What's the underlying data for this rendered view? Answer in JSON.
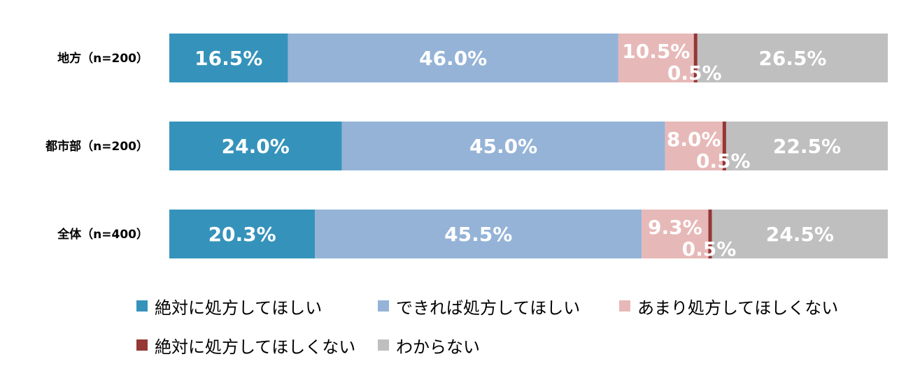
{
  "chart_data": {
    "type": "bar",
    "orientation": "horizontal",
    "stacked": true,
    "percent_stacked": true,
    "categories": [
      "地方（n=200）",
      "都市部（n=200）",
      "全体（n=400）"
    ],
    "series": [
      {
        "name": "絶対に処方してほしい",
        "color": "#3593BB",
        "values": [
          16.5,
          24.0,
          20.3
        ],
        "labels": [
          "16.5%",
          "24.0%",
          "20.3%"
        ]
      },
      {
        "name": "できれば処方してほしい",
        "color": "#95B3D7",
        "values": [
          46.0,
          45.0,
          45.5
        ],
        "labels": [
          "46.0%",
          "45.0%",
          "45.5%"
        ]
      },
      {
        "name": "あまり処方してほしくない",
        "color": "#E6B9B8",
        "values": [
          10.5,
          8.0,
          9.3
        ],
        "labels": [
          "10.5%",
          "8.0%",
          "9.3%"
        ]
      },
      {
        "name": "絶対に処方してほしくない",
        "color": "#953735",
        "values": [
          0.5,
          0.5,
          0.5
        ],
        "labels": [
          "0.5%",
          "0.5%",
          "0.5%"
        ]
      },
      {
        "name": "わからない",
        "color": "#BFBFBF",
        "values": [
          26.5,
          22.5,
          24.5
        ],
        "labels": [
          "26.5%",
          "22.5%",
          "24.5%"
        ]
      }
    ],
    "xlim": [
      0,
      100
    ],
    "grid": false,
    "legend_position": "bottom"
  }
}
